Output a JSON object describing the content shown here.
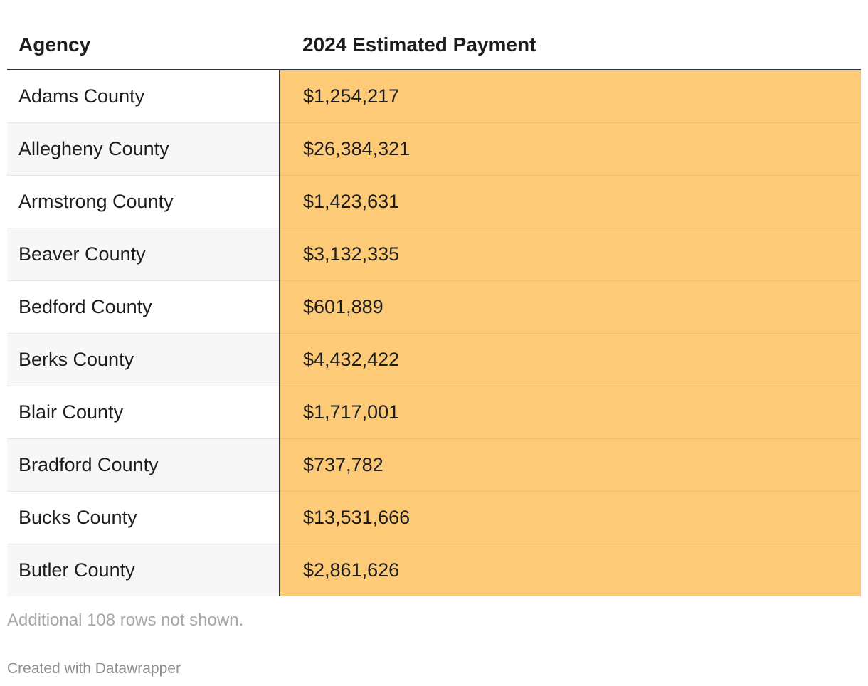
{
  "chart_data": {
    "type": "table",
    "columns": [
      "Agency",
      "2024 Estimated Payment"
    ],
    "rows": [
      {
        "agency": "Adams County",
        "payment": "$1,254,217"
      },
      {
        "agency": "Allegheny County",
        "payment": "$26,384,321"
      },
      {
        "agency": "Armstrong County",
        "payment": "$1,423,631"
      },
      {
        "agency": "Beaver County",
        "payment": "$3,132,335"
      },
      {
        "agency": "Bedford County",
        "payment": "$601,889"
      },
      {
        "agency": "Berks County",
        "payment": "$4,432,422"
      },
      {
        "agency": "Blair County",
        "payment": "$1,717,001"
      },
      {
        "agency": "Bradford County",
        "payment": "$737,782"
      },
      {
        "agency": "Bucks County",
        "payment": "$13,531,666"
      },
      {
        "agency": "Butler County",
        "payment": "$2,861,626"
      }
    ],
    "highlight_color": "#fdca77"
  },
  "footer": {
    "note": "Additional 108 rows not shown.",
    "credit": "Created with Datawrapper"
  }
}
